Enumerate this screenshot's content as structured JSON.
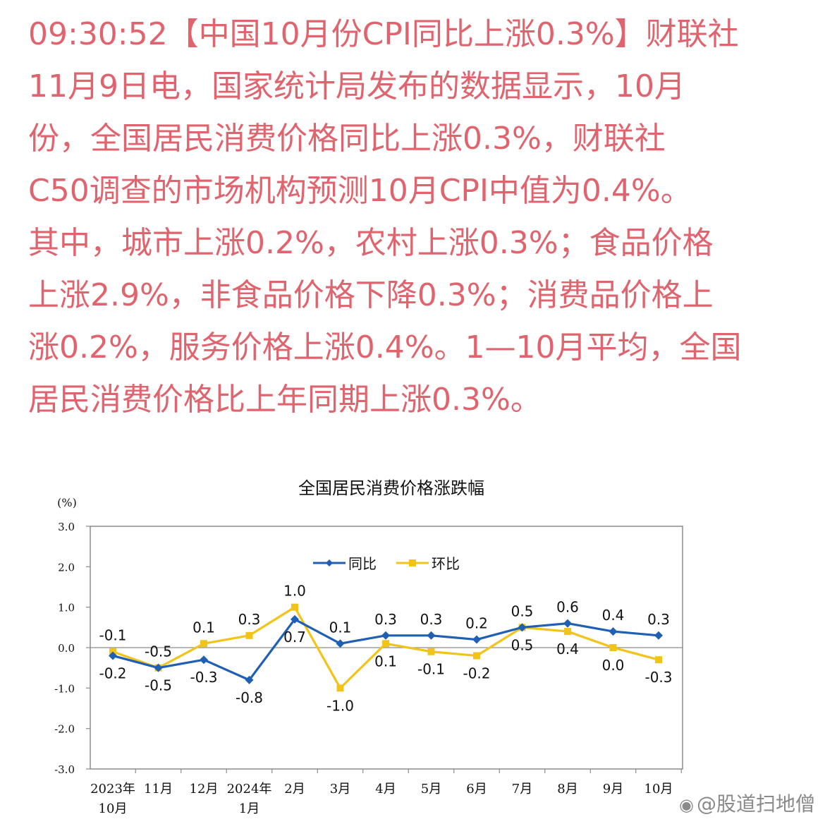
{
  "news": {
    "lines": [
      "09:30:52【中国10月份CPI同比上涨0.3%】财联社",
      " 11月9日电，国家统计局发布的数据显示，10月",
      "份，全国居民消费价格同比上涨0.3%，财联社",
      " C50调查的市场机构预测10月CPI中值为0.4%。",
      "其中，城市上涨0.2%，农村上涨0.3%；食品价格",
      "上涨2.9%，非食品价格下降0.3%；消费品价格上",
      "涨0.2%，服务价格上涨0.4%。1—10月平均，全国",
      "居民消费价格比上年同期上涨0.3%。"
    ]
  },
  "chart_data": {
    "type": "line",
    "title": "全国居民消费价格涨跌幅",
    "ylabel": "(%)",
    "ylim": [
      -3.0,
      3.0
    ],
    "yticks": [
      "3.0",
      "2.0",
      "1.0",
      "0.0",
      "-1.0",
      "-2.0",
      "-3.0"
    ],
    "categories": [
      [
        "2023年",
        "10月"
      ],
      [
        "11月"
      ],
      [
        "12月"
      ],
      [
        "2024年",
        "1月"
      ],
      [
        "2月"
      ],
      [
        "3月"
      ],
      [
        "4月"
      ],
      [
        "5月"
      ],
      [
        "6月"
      ],
      [
        "7月"
      ],
      [
        "8月"
      ],
      [
        "9月"
      ],
      [
        "10月"
      ]
    ],
    "legend_position": "top-center",
    "grid": false,
    "series": [
      {
        "name": "同比",
        "color": "#1f5fb4",
        "marker": "diamond",
        "values": [
          -0.2,
          -0.5,
          -0.3,
          -0.8,
          0.7,
          0.1,
          0.3,
          0.3,
          0.2,
          0.5,
          0.6,
          0.4,
          0.3
        ],
        "labels": [
          "-0.2",
          "-0.5",
          "-0.3",
          "-0.8",
          "0.7",
          "0.1",
          "0.3",
          "0.3",
          "0.2",
          "0.5",
          "0.6",
          "0.4",
          "0.3"
        ]
      },
      {
        "name": "环比",
        "color": "#f2c318",
        "marker": "square",
        "values": [
          -0.1,
          -0.5,
          0.1,
          0.3,
          1.0,
          -1.0,
          0.1,
          -0.1,
          -0.2,
          0.5,
          0.4,
          0.0,
          -0.3
        ],
        "labels": [
          "-0.1",
          "-0.5",
          "0.1",
          "0.3",
          "1.0",
          "-1.0",
          "0.1",
          "-0.1",
          "-0.2",
          "0.5",
          "0.4",
          "0.0",
          "-0.3"
        ]
      }
    ]
  },
  "watermark": {
    "logo_icon": "weibo-icon",
    "text": "@股道扫地僧"
  }
}
